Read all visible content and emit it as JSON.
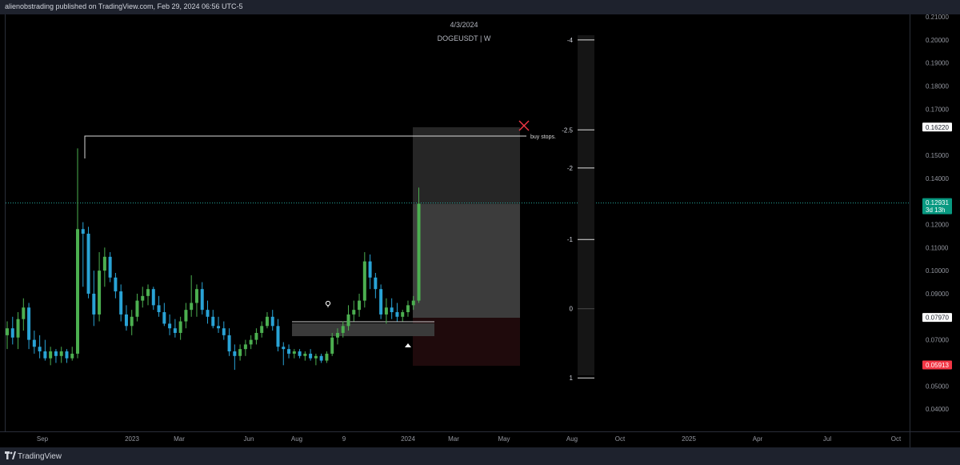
{
  "header": {
    "publisher": "alienobstrading published on TradingView.com, Feb 29, 2024 06:56 UTC-5"
  },
  "footer": {
    "brand": "TradingView"
  },
  "chart_data": {
    "type": "candlestick",
    "symbol": "DOGEUSDT | W",
    "date_label": "4/3/2024",
    "ylim": [
      0.035,
      0.21
    ],
    "y_ticks": [
      "0.21000",
      "0.20000",
      "0.19000",
      "0.18000",
      "0.17000",
      "0.15000",
      "0.14000",
      "0.12000",
      "0.11000",
      "0.10000",
      "0.09000",
      "0.07000",
      "0.05000",
      "0.04000"
    ],
    "x_ticks": [
      "Sep",
      "2023",
      "Mar",
      "Jun",
      "Aug",
      "9",
      "2024",
      "Mar",
      "May",
      "Aug",
      "Oct",
      "2025",
      "Apr",
      "Jul",
      "Oct"
    ],
    "price_labels": [
      {
        "value": 0.1622,
        "text": "0.16220",
        "bg": "#ffffff",
        "fg": "#131722"
      },
      {
        "value": 0.12931,
        "text": "0.12931",
        "sub": "3d 13h",
        "bg": "#089981",
        "fg": "#ffffff"
      },
      {
        "value": 0.0797,
        "text": "0.07970",
        "bg": "#ffffff",
        "fg": "#131722"
      },
      {
        "value": 0.05913,
        "text": "0.05913",
        "bg": "#f23645",
        "fg": "#ffffff"
      }
    ],
    "fib_levels": [
      {
        "label": "-4",
        "value": 0.2
      },
      {
        "label": "-2.5",
        "value": 0.161
      },
      {
        "label": "-2",
        "value": 0.1445
      },
      {
        "label": "-1",
        "value": 0.1135
      },
      {
        "label": "0",
        "value": 0.0835
      },
      {
        "label": "1",
        "value": 0.0535
      }
    ],
    "annotations": {
      "buy_stops": "buy stops."
    },
    "candles": [
      {
        "o": 0.072,
        "h": 0.078,
        "l": 0.066,
        "c": 0.075
      },
      {
        "o": 0.075,
        "h": 0.08,
        "l": 0.068,
        "c": 0.071
      },
      {
        "o": 0.071,
        "h": 0.082,
        "l": 0.066,
        "c": 0.079
      },
      {
        "o": 0.079,
        "h": 0.088,
        "l": 0.074,
        "c": 0.084
      },
      {
        "o": 0.084,
        "h": 0.086,
        "l": 0.066,
        "c": 0.07
      },
      {
        "o": 0.07,
        "h": 0.074,
        "l": 0.064,
        "c": 0.067
      },
      {
        "o": 0.067,
        "h": 0.072,
        "l": 0.062,
        "c": 0.065
      },
      {
        "o": 0.065,
        "h": 0.07,
        "l": 0.061,
        "c": 0.062
      },
      {
        "o": 0.062,
        "h": 0.067,
        "l": 0.059,
        "c": 0.065
      },
      {
        "o": 0.065,
        "h": 0.066,
        "l": 0.06,
        "c": 0.063
      },
      {
        "o": 0.063,
        "h": 0.067,
        "l": 0.06,
        "c": 0.065
      },
      {
        "o": 0.065,
        "h": 0.066,
        "l": 0.06,
        "c": 0.062
      },
      {
        "o": 0.062,
        "h": 0.067,
        "l": 0.061,
        "c": 0.064
      },
      {
        "o": 0.064,
        "h": 0.153,
        "l": 0.062,
        "c": 0.118
      },
      {
        "o": 0.118,
        "h": 0.121,
        "l": 0.093,
        "c": 0.116
      },
      {
        "o": 0.116,
        "h": 0.119,
        "l": 0.088,
        "c": 0.09
      },
      {
        "o": 0.09,
        "h": 0.1,
        "l": 0.076,
        "c": 0.081
      },
      {
        "o": 0.081,
        "h": 0.108,
        "l": 0.078,
        "c": 0.1
      },
      {
        "o": 0.1,
        "h": 0.11,
        "l": 0.093,
        "c": 0.106
      },
      {
        "o": 0.106,
        "h": 0.108,
        "l": 0.095,
        "c": 0.097
      },
      {
        "o": 0.097,
        "h": 0.099,
        "l": 0.088,
        "c": 0.091
      },
      {
        "o": 0.091,
        "h": 0.094,
        "l": 0.078,
        "c": 0.081
      },
      {
        "o": 0.081,
        "h": 0.085,
        "l": 0.074,
        "c": 0.076
      },
      {
        "o": 0.076,
        "h": 0.083,
        "l": 0.072,
        "c": 0.08
      },
      {
        "o": 0.08,
        "h": 0.09,
        "l": 0.078,
        "c": 0.087
      },
      {
        "o": 0.087,
        "h": 0.093,
        "l": 0.084,
        "c": 0.089
      },
      {
        "o": 0.089,
        "h": 0.094,
        "l": 0.085,
        "c": 0.092
      },
      {
        "o": 0.092,
        "h": 0.093,
        "l": 0.083,
        "c": 0.085
      },
      {
        "o": 0.085,
        "h": 0.089,
        "l": 0.08,
        "c": 0.082
      },
      {
        "o": 0.082,
        "h": 0.086,
        "l": 0.076,
        "c": 0.077
      },
      {
        "o": 0.077,
        "h": 0.081,
        "l": 0.072,
        "c": 0.075
      },
      {
        "o": 0.075,
        "h": 0.079,
        "l": 0.071,
        "c": 0.073
      },
      {
        "o": 0.073,
        "h": 0.08,
        "l": 0.07,
        "c": 0.078
      },
      {
        "o": 0.078,
        "h": 0.086,
        "l": 0.075,
        "c": 0.083
      },
      {
        "o": 0.083,
        "h": 0.098,
        "l": 0.08,
        "c": 0.086
      },
      {
        "o": 0.086,
        "h": 0.094,
        "l": 0.08,
        "c": 0.092
      },
      {
        "o": 0.092,
        "h": 0.095,
        "l": 0.081,
        "c": 0.083
      },
      {
        "o": 0.083,
        "h": 0.087,
        "l": 0.077,
        "c": 0.08
      },
      {
        "o": 0.08,
        "h": 0.083,
        "l": 0.075,
        "c": 0.076
      },
      {
        "o": 0.076,
        "h": 0.08,
        "l": 0.073,
        "c": 0.075
      },
      {
        "o": 0.075,
        "h": 0.078,
        "l": 0.07,
        "c": 0.072
      },
      {
        "o": 0.072,
        "h": 0.075,
        "l": 0.063,
        "c": 0.065
      },
      {
        "o": 0.065,
        "h": 0.068,
        "l": 0.057,
        "c": 0.063
      },
      {
        "o": 0.063,
        "h": 0.068,
        "l": 0.061,
        "c": 0.066
      },
      {
        "o": 0.066,
        "h": 0.07,
        "l": 0.063,
        "c": 0.068
      },
      {
        "o": 0.068,
        "h": 0.072,
        "l": 0.066,
        "c": 0.07
      },
      {
        "o": 0.07,
        "h": 0.075,
        "l": 0.068,
        "c": 0.073
      },
      {
        "o": 0.073,
        "h": 0.078,
        "l": 0.071,
        "c": 0.076
      },
      {
        "o": 0.076,
        "h": 0.082,
        "l": 0.075,
        "c": 0.08
      },
      {
        "o": 0.08,
        "h": 0.083,
        "l": 0.074,
        "c": 0.076
      },
      {
        "o": 0.076,
        "h": 0.079,
        "l": 0.065,
        "c": 0.067
      },
      {
        "o": 0.067,
        "h": 0.069,
        "l": 0.059,
        "c": 0.066
      },
      {
        "o": 0.066,
        "h": 0.068,
        "l": 0.062,
        "c": 0.064
      },
      {
        "o": 0.064,
        "h": 0.066,
        "l": 0.062,
        "c": 0.065
      },
      {
        "o": 0.065,
        "h": 0.066,
        "l": 0.062,
        "c": 0.063
      },
      {
        "o": 0.063,
        "h": 0.065,
        "l": 0.061,
        "c": 0.064
      },
      {
        "o": 0.064,
        "h": 0.066,
        "l": 0.061,
        "c": 0.062
      },
      {
        "o": 0.062,
        "h": 0.064,
        "l": 0.059,
        "c": 0.063
      },
      {
        "o": 0.063,
        "h": 0.064,
        "l": 0.06,
        "c": 0.061
      },
      {
        "o": 0.061,
        "h": 0.065,
        "l": 0.06,
        "c": 0.064
      },
      {
        "o": 0.064,
        "h": 0.073,
        "l": 0.063,
        "c": 0.071
      },
      {
        "o": 0.071,
        "h": 0.075,
        "l": 0.068,
        "c": 0.073
      },
      {
        "o": 0.073,
        "h": 0.078,
        "l": 0.071,
        "c": 0.076
      },
      {
        "o": 0.076,
        "h": 0.085,
        "l": 0.074,
        "c": 0.081
      },
      {
        "o": 0.081,
        "h": 0.087,
        "l": 0.078,
        "c": 0.083
      },
      {
        "o": 0.083,
        "h": 0.09,
        "l": 0.08,
        "c": 0.087
      },
      {
        "o": 0.087,
        "h": 0.108,
        "l": 0.084,
        "c": 0.104
      },
      {
        "o": 0.104,
        "h": 0.107,
        "l": 0.092,
        "c": 0.097
      },
      {
        "o": 0.097,
        "h": 0.099,
        "l": 0.088,
        "c": 0.092
      },
      {
        "o": 0.092,
        "h": 0.094,
        "l": 0.079,
        "c": 0.081
      },
      {
        "o": 0.081,
        "h": 0.088,
        "l": 0.077,
        "c": 0.084
      },
      {
        "o": 0.084,
        "h": 0.088,
        "l": 0.079,
        "c": 0.082
      },
      {
        "o": 0.082,
        "h": 0.086,
        "l": 0.078,
        "c": 0.08
      },
      {
        "o": 0.08,
        "h": 0.083,
        "l": 0.078,
        "c": 0.082
      },
      {
        "o": 0.082,
        "h": 0.087,
        "l": 0.08,
        "c": 0.085
      },
      {
        "o": 0.085,
        "h": 0.089,
        "l": 0.083,
        "c": 0.087
      },
      {
        "o": 0.087,
        "h": 0.136,
        "l": 0.086,
        "c": 0.129
      }
    ]
  }
}
